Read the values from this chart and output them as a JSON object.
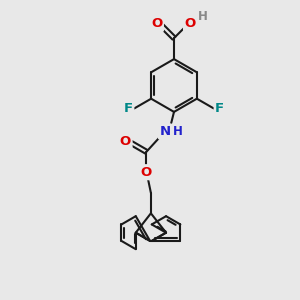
{
  "background_color": "#e8e8e8",
  "bond_color": "#1a1a1a",
  "colors": {
    "O": "#dd0000",
    "N": "#2222cc",
    "F": "#008888",
    "H_gray": "#888888",
    "H_blue": "#2222cc",
    "C": "#1a1a1a"
  },
  "bond_lw": 1.5,
  "font_size": 9.5,
  "figsize": [
    3.0,
    3.0
  ],
  "dpi": 100
}
